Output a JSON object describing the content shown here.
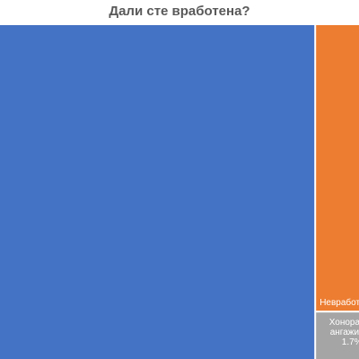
{
  "chart_data": {
    "type": "treemap",
    "title": "Дали сте вработена?",
    "items": [
      {
        "label": "",
        "value_label": "",
        "value": 87.8,
        "color": "#4472c4"
      },
      {
        "label": "Невработе",
        "value_label": "",
        "value": 10.5,
        "color": "#ed7d31"
      },
      {
        "label": "Хонорарно ангажиран",
        "value_label": "1.7%",
        "value": 1.7,
        "color": "#a5a5a5"
      }
    ]
  }
}
